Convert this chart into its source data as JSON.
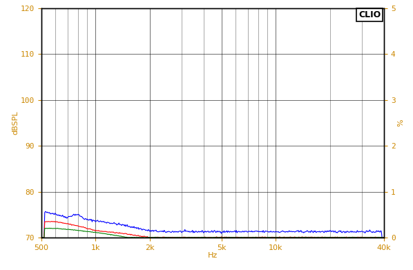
{
  "title": "",
  "ylabel_left": "dBSPL",
  "ylabel_right": "%",
  "xlabel": "Hz",
  "xmin": 500,
  "xmax": 40000,
  "ymin": 70,
  "ymax": 120,
  "yright_min": 0,
  "yright_max": 5,
  "yticks_left": [
    70,
    80,
    90,
    100,
    110,
    120
  ],
  "yticks_right": [
    0,
    1,
    2,
    3,
    4,
    5
  ],
  "xtick_positions": [
    500,
    1000,
    2000,
    5000,
    10000,
    40000
  ],
  "xtick_labels": [
    "500",
    "1k",
    "2k",
    "5k",
    "10k",
    "40k"
  ],
  "background_color": "#ffffff",
  "grid_color": "#000000",
  "line_colors": [
    "#0000ff",
    "#ff0000",
    "#008000"
  ],
  "axis_label_color": "#cc8800",
  "tick_label_color": "#cc8800",
  "clio_box_facecolor": "#ffffff",
  "clio_text_color": "#000000",
  "border_color": "#000000"
}
